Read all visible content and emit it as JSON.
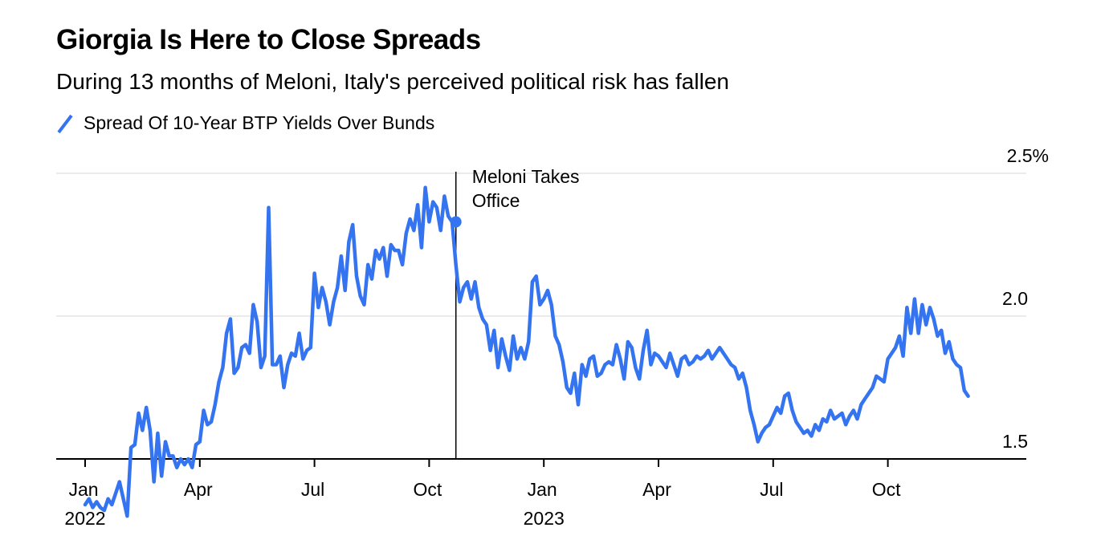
{
  "chart_data": {
    "type": "line",
    "title": "Giorgia Is Here to Close Spreads",
    "subtitle": "During 13 months of Meloni, Italy's perceived political risk has fallen",
    "legend": [
      {
        "name": "Spread Of 10-Year BTP Yields Over Bunds",
        "color": "#3574f0"
      }
    ],
    "legend_position": "top-left",
    "xlabel": "",
    "ylabel": "",
    "y_unit": "%",
    "ylim": [
      1.5,
      2.5
    ],
    "yticks": [
      {
        "value": 2.5,
        "label": "2.5%"
      },
      {
        "value": 2.0,
        "label": "2.0"
      },
      {
        "value": 1.5,
        "label": "1.5"
      }
    ],
    "grid": true,
    "xlim_months": [
      -0.2,
      25.8
    ],
    "xticks": [
      {
        "month": 0,
        "label": "Jan",
        "year": "2022"
      },
      {
        "month": 3,
        "label": "Apr",
        "year": ""
      },
      {
        "month": 6,
        "label": "Jul",
        "year": ""
      },
      {
        "month": 9,
        "label": "Oct",
        "year": ""
      },
      {
        "month": 12,
        "label": "Jan",
        "year": "2023"
      },
      {
        "month": 15,
        "label": "Apr",
        "year": ""
      },
      {
        "month": 18,
        "label": "Jul",
        "year": ""
      },
      {
        "month": 21,
        "label": "Oct",
        "year": ""
      }
    ],
    "annotation": {
      "month": 9.7,
      "value": 2.33,
      "text_line1": "Meloni Takes",
      "text_line2": "Office"
    },
    "series": [
      {
        "name": "Spread Of 10-Year BTP Yields Over Bunds",
        "color": "#3574f0",
        "x_month": [
          0.0,
          0.1,
          0.2,
          0.3,
          0.4,
          0.5,
          0.6,
          0.7,
          0.8,
          0.9,
          1.0,
          1.1,
          1.2,
          1.3,
          1.4,
          1.5,
          1.6,
          1.7,
          1.8,
          1.9,
          2.0,
          2.1,
          2.2,
          2.3,
          2.4,
          2.5,
          2.6,
          2.7,
          2.8,
          2.9,
          3.0,
          3.1,
          3.2,
          3.3,
          3.4,
          3.5,
          3.6,
          3.7,
          3.8,
          3.9,
          4.0,
          4.1,
          4.2,
          4.3,
          4.4,
          4.5,
          4.6,
          4.7,
          4.8,
          4.9,
          5.0,
          5.1,
          5.2,
          5.3,
          5.4,
          5.5,
          5.6,
          5.7,
          5.8,
          5.9,
          6.0,
          6.1,
          6.2,
          6.3,
          6.4,
          6.5,
          6.6,
          6.7,
          6.8,
          6.9,
          7.0,
          7.1,
          7.2,
          7.3,
          7.4,
          7.5,
          7.6,
          7.7,
          7.8,
          7.9,
          8.0,
          8.1,
          8.2,
          8.3,
          8.4,
          8.5,
          8.6,
          8.7,
          8.8,
          8.9,
          9.0,
          9.1,
          9.2,
          9.3,
          9.4,
          9.5,
          9.6,
          9.7,
          9.8,
          9.9,
          10.0,
          10.1,
          10.2,
          10.3,
          10.4,
          10.5,
          10.6,
          10.7,
          10.8,
          10.9,
          11.0,
          11.1,
          11.2,
          11.3,
          11.4,
          11.5,
          11.6,
          11.7,
          11.8,
          11.9,
          12.0,
          12.1,
          12.2,
          12.3,
          12.4,
          12.5,
          12.6,
          12.7,
          12.8,
          12.9,
          13.0,
          13.1,
          13.2,
          13.3,
          13.4,
          13.5,
          13.6,
          13.7,
          13.8,
          13.9,
          14.0,
          14.1,
          14.2,
          14.3,
          14.4,
          14.5,
          14.6,
          14.7,
          14.8,
          14.9,
          15.0,
          15.1,
          15.2,
          15.3,
          15.4,
          15.5,
          15.6,
          15.7,
          15.8,
          15.9,
          16.0,
          16.1,
          16.2,
          16.3,
          16.4,
          16.5,
          16.6,
          16.7,
          16.8,
          16.9,
          17.0,
          17.1,
          17.2,
          17.3,
          17.4,
          17.5,
          17.6,
          17.7,
          17.8,
          17.9,
          18.0,
          18.1,
          18.2,
          18.3,
          18.4,
          18.5,
          18.6,
          18.7,
          18.8,
          18.9,
          19.0,
          19.1,
          19.2,
          19.3,
          19.4,
          19.5,
          19.6,
          19.7,
          19.8,
          19.9,
          20.0,
          20.1,
          20.2,
          20.3,
          20.4,
          20.5,
          20.6,
          20.7,
          20.8,
          20.9,
          21.0,
          21.1,
          21.2,
          21.3,
          21.4,
          21.5,
          21.6,
          21.7,
          21.8,
          21.9,
          22.0,
          22.1,
          22.2,
          22.3,
          22.4,
          22.5,
          22.6,
          22.7,
          22.8,
          22.9,
          23.0,
          23.1,
          23.2,
          23.3,
          23.4,
          23.5,
          23.6,
          23.7,
          23.8,
          23.9,
          24.0,
          24.1,
          24.2,
          24.3,
          24.4,
          24.5,
          24.6,
          24.7,
          24.8,
          24.9,
          25.0,
          25.1,
          25.2,
          25.3,
          25.4,
          25.5,
          25.6
        ],
        "values": [
          1.34,
          1.36,
          1.33,
          1.35,
          1.33,
          1.32,
          1.36,
          1.34,
          1.38,
          1.42,
          1.36,
          1.3,
          1.54,
          1.55,
          1.66,
          1.6,
          1.68,
          1.6,
          1.42,
          1.59,
          1.44,
          1.56,
          1.51,
          1.51,
          1.47,
          1.5,
          1.48,
          1.5,
          1.47,
          1.55,
          1.56,
          1.67,
          1.62,
          1.63,
          1.69,
          1.77,
          1.82,
          1.94,
          1.99,
          1.8,
          1.82,
          1.89,
          1.9,
          1.87,
          2.04,
          1.98,
          1.82,
          1.86,
          2.38,
          1.83,
          1.83,
          1.86,
          1.75,
          1.83,
          1.87,
          1.86,
          1.94,
          1.85,
          1.88,
          1.89,
          2.15,
          2.03,
          2.1,
          2.05,
          1.97,
          2.05,
          2.1,
          2.21,
          2.09,
          2.26,
          2.32,
          2.14,
          2.07,
          2.04,
          2.18,
          2.13,
          2.23,
          2.2,
          2.24,
          2.14,
          2.25,
          2.23,
          2.23,
          2.18,
          2.29,
          2.34,
          2.3,
          2.39,
          2.24,
          2.45,
          2.33,
          2.4,
          2.38,
          2.3,
          2.42,
          2.35,
          2.33,
          2.18,
          2.05,
          2.1,
          2.12,
          2.06,
          2.12,
          2.03,
          1.99,
          1.97,
          1.88,
          1.95,
          1.82,
          1.92,
          1.86,
          1.81,
          1.93,
          1.85,
          1.89,
          1.85,
          1.91,
          2.12,
          2.14,
          2.04,
          2.06,
          2.09,
          2.04,
          1.93,
          1.9,
          1.84,
          1.75,
          1.73,
          1.8,
          1.69,
          1.83,
          1.79,
          1.85,
          1.86,
          1.79,
          1.8,
          1.83,
          1.84,
          1.83,
          1.9,
          1.85,
          1.78,
          1.91,
          1.89,
          1.82,
          1.78,
          1.88,
          1.95,
          1.83,
          1.87,
          1.86,
          1.84,
          1.82,
          1.87,
          1.83,
          1.79,
          1.85,
          1.86,
          1.83,
          1.84,
          1.86,
          1.85,
          1.86,
          1.88,
          1.85,
          1.87,
          1.89,
          1.87,
          1.85,
          1.83,
          1.82,
          1.78,
          1.8,
          1.75,
          1.67,
          1.62,
          1.56,
          1.59,
          1.61,
          1.62,
          1.65,
          1.68,
          1.66,
          1.72,
          1.73,
          1.67,
          1.63,
          1.61,
          1.59,
          1.6,
          1.58,
          1.62,
          1.6,
          1.64,
          1.63,
          1.67,
          1.64,
          1.65,
          1.66,
          1.62,
          1.65,
          1.67,
          1.64,
          1.69,
          1.71,
          1.73,
          1.75,
          1.79,
          1.78,
          1.77,
          1.85,
          1.87,
          1.89,
          1.93,
          1.86,
          2.03,
          1.94,
          2.06,
          1.94,
          2.04,
          1.97,
          2.03,
          1.99,
          1.93,
          1.95,
          1.87,
          1.91,
          1.85,
          1.83,
          1.82,
          1.74,
          1.72
        ]
      }
    ]
  }
}
